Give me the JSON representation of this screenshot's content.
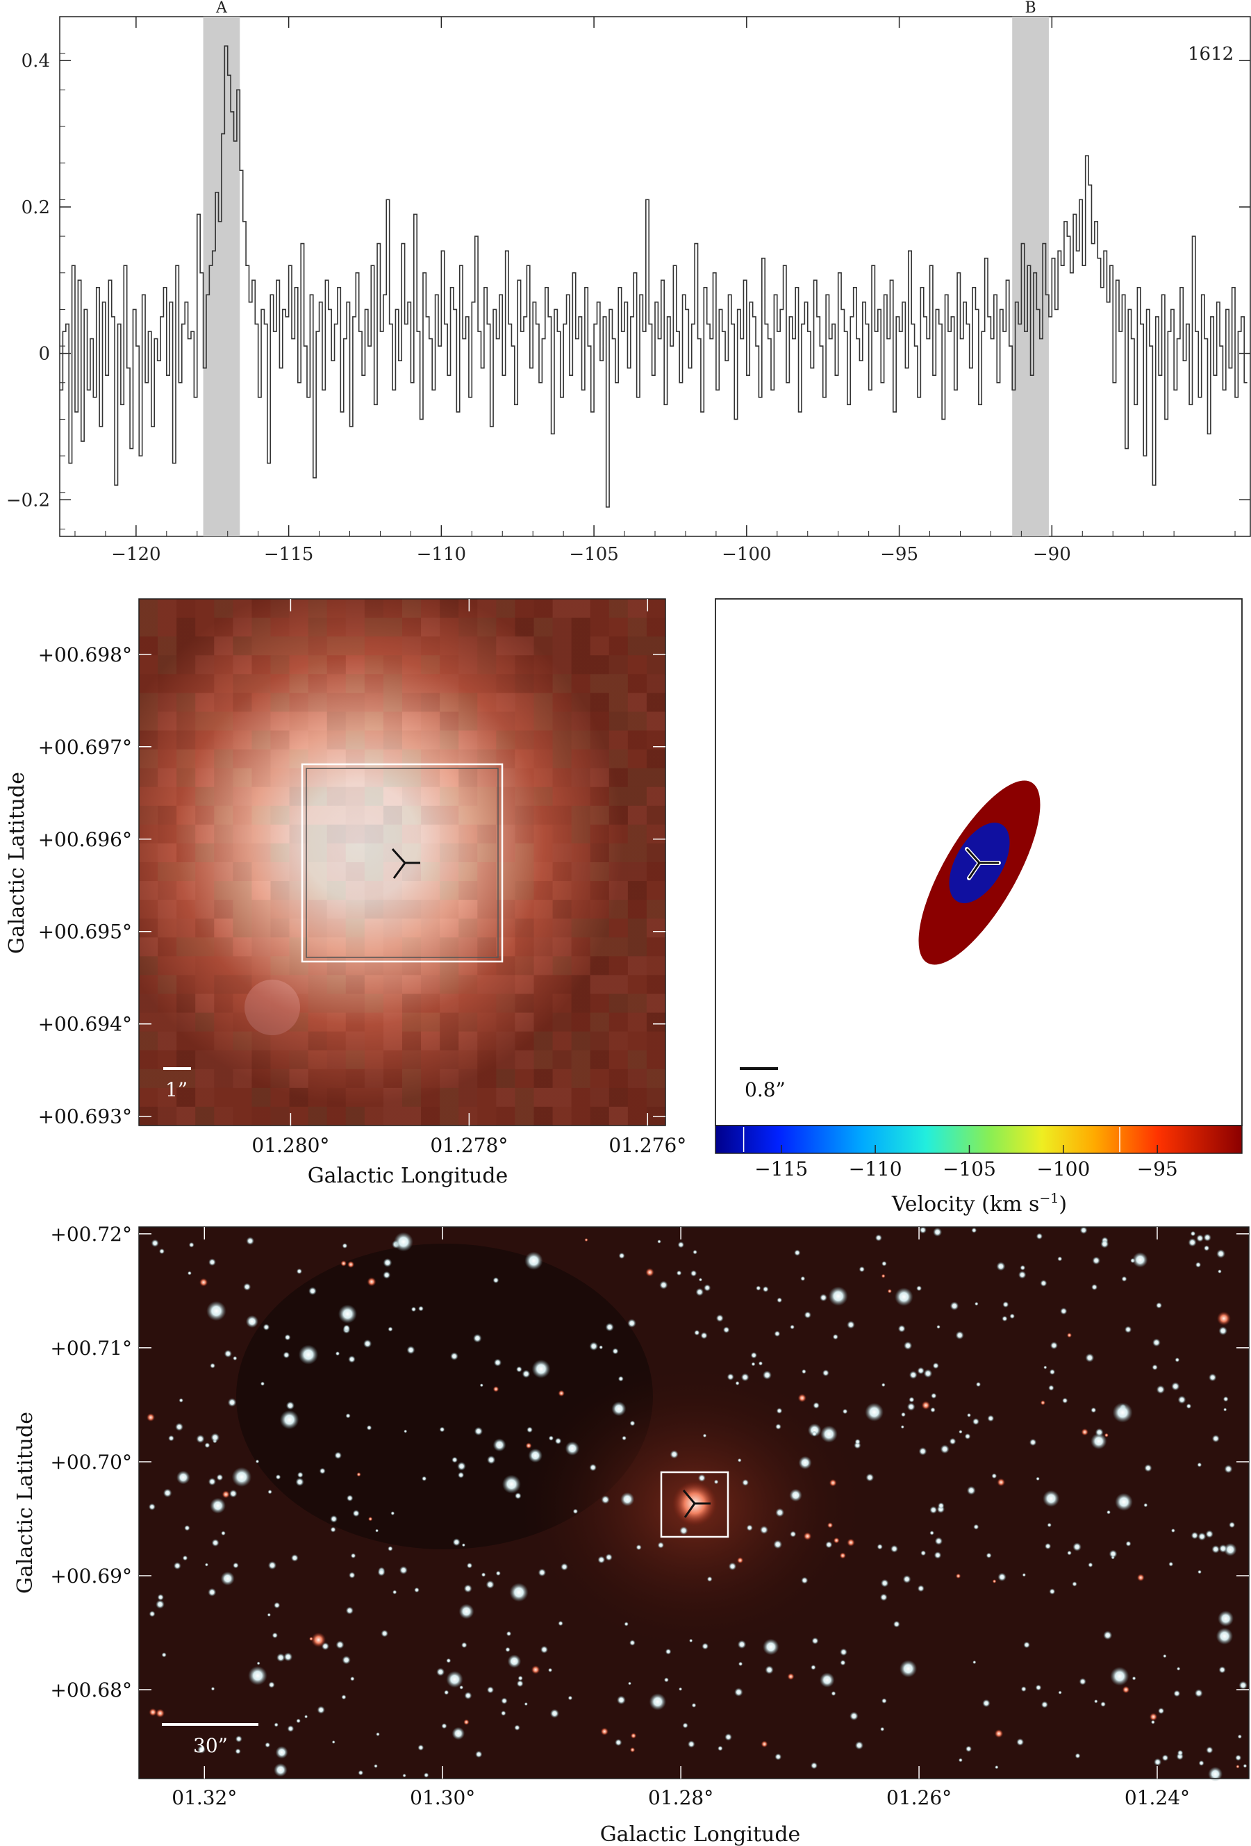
{
  "spectrum": {
    "line_label": "1612",
    "markers": [
      {
        "label": "A",
        "range": [
          -117.8,
          -116.6
        ]
      },
      {
        "label": "B",
        "range": [
          -91.3,
          -90.1
        ]
      }
    ],
    "marker_color": "#cccccc"
  },
  "zoom": {
    "xlabel": "Galactic Longitude",
    "ylabel": "Galactic Latitude",
    "scale_label": "1”",
    "xticks": [
      "01.280°",
      "01.278°",
      "01.276°"
    ],
    "yticks": [
      "+00.698°",
      "+00.697°",
      "+00.696°",
      "+00.695°",
      "+00.694°",
      "+00.693°"
    ]
  },
  "velocity_map": {
    "scale_label": "0.8”",
    "colorbar_label": "Velocity (km s",
    "colorbar_exp": "−1",
    "colorbar_ticks": [
      "−115",
      "−110",
      "−105",
      "−100",
      "−95"
    ],
    "outer_color": "#8b0000",
    "inner_color": "#1010a0"
  },
  "field": {
    "xlabel": "Galactic Longitude",
    "ylabel": "Galactic Latitude",
    "scale_label": "30”",
    "xticks": [
      "01.32°",
      "01.30°",
      "01.28°",
      "01.26°",
      "01.24°"
    ],
    "yticks": [
      "+00.72°",
      "+00.71°",
      "+00.70°",
      "+00.69°",
      "+00.68°"
    ]
  },
  "chart_data": [
    {
      "type": "line",
      "title": "",
      "xlabel": "",
      "ylabel": "",
      "xlim": [
        -122.5,
        -83.5
      ],
      "ylim": [
        -0.25,
        0.46
      ],
      "xticks": [
        -120,
        -115,
        -110,
        -105,
        -100,
        -95,
        -90
      ],
      "yticks": [
        -0.2,
        0,
        0.2,
        0.4
      ],
      "ytick_labels": [
        "−0.2",
        "0",
        "0.2",
        "0.4"
      ],
      "xtick_labels": [
        "−120",
        "−115",
        "−110",
        "−105",
        "−100",
        "−95",
        "−90"
      ],
      "grid": false,
      "series": [
        {
          "name": "",
          "x_start": -122.5,
          "x_step": 0.1,
          "values": [
            -0.05,
            0.03,
            0.04,
            -0.15,
            0.12,
            -0.08,
            0.1,
            -0.12,
            0.06,
            -0.05,
            0.02,
            -0.06,
            0.09,
            -0.1,
            0.07,
            -0.03,
            0.1,
            0.05,
            -0.18,
            0.04,
            -0.07,
            0.12,
            -0.02,
            -0.13,
            0.06,
            0.01,
            -0.14,
            0.08,
            -0.04,
            0.03,
            -0.1,
            0.02,
            -0.01,
            0.05,
            0.09,
            -0.03,
            0.07,
            -0.15,
            0.12,
            -0.04,
            0.04,
            0.07,
            0.02,
            0.03,
            -0.06,
            0.19,
            0.11,
            -0.02,
            0.08,
            0.12,
            0.14,
            0.22,
            0.18,
            0.3,
            0.42,
            0.38,
            0.33,
            0.29,
            0.36,
            0.25,
            0.18,
            0.12,
            0.07,
            0.1,
            0.04,
            -0.06,
            0.06,
            0.04,
            -0.15,
            0.08,
            0.03,
            0.1,
            -0.02,
            0.06,
            0.05,
            0.12,
            0.02,
            0.09,
            -0.04,
            0.15,
            0.01,
            -0.06,
            0.08,
            -0.17,
            0.03,
            0.07,
            -0.05,
            0.1,
            0.06,
            -0.01,
            0.04,
            0.09,
            -0.08,
            0.02,
            0.07,
            -0.1,
            0.05,
            0.11,
            0.03,
            -0.03,
            0.06,
            0.01,
            0.12,
            -0.07,
            0.15,
            0.03,
            0.08,
            0.21,
            0.04,
            -0.05,
            0.06,
            -0.01,
            0.15,
            0.04,
            0.07,
            -0.04,
            0.19,
            0.03,
            -0.09,
            0.11,
            0.05,
            0.02,
            -0.05,
            0.08,
            0.01,
            0.14,
            0.04,
            -0.03,
            0.09,
            0.06,
            -0.08,
            0.12,
            0.02,
            0.05,
            -0.06,
            0.07,
            0.16,
            0.03,
            -0.02,
            0.09,
            0.04,
            -0.1,
            0.06,
            0.02,
            0.08,
            -0.03,
            0.14,
            0.04,
            0.01,
            -0.07,
            0.1,
            0.03,
            0.05,
            0.12,
            -0.02,
            0.07,
            0.04,
            -0.04,
            0.02,
            0.09,
            0.05,
            -0.11,
            0.06,
            0.03,
            -0.06,
            0.04,
            0.08,
            -0.03,
            0.11,
            0.02,
            0.05,
            -0.05,
            0.09,
            0.01,
            -0.08,
            0.04,
            0.07,
            -0.01,
            0.05,
            -0.21,
            0.06,
            0.02,
            -0.04,
            0.09,
            0.03,
            0.07,
            -0.02,
            0.05,
            0.11,
            -0.06,
            0.08,
            0.03,
            0.21,
            0.04,
            -0.03,
            0.07,
            0.02,
            0.1,
            -0.07,
            0.05,
            0.01,
            0.12,
            0.03,
            -0.04,
            0.08,
            0.06,
            -0.02,
            0.04,
            0.15,
            0.02,
            -0.08,
            0.09,
            0.04,
            0.02,
            0.11,
            -0.05,
            0.06,
            0.03,
            -0.01,
            0.08,
            0.04,
            -0.09,
            0.06,
            0.02,
            0.1,
            -0.03,
            0.07,
            0.05,
            0.01,
            -0.06,
            0.13,
            0.04,
            0.02,
            -0.05,
            0.08,
            0.03,
            0.06,
            0.12,
            -0.04,
            0.05,
            0.02,
            0.09,
            -0.08,
            0.04,
            0.07,
            0.03,
            -0.02,
            0.1,
            0.05,
            0.01,
            -0.06,
            0.08,
            0.02,
            0.04,
            -0.03,
            0.11,
            0.06,
            0.03,
            -0.07,
            0.05,
            0.09,
            0.02,
            -0.01,
            0.07,
            0.04,
            -0.05,
            0.12,
            0.03,
            0.06,
            -0.04,
            0.08,
            0.02,
            0.1,
            -0.08,
            0.05,
            0.03,
            0.07,
            -0.02,
            0.14,
            0.04,
            0.01,
            -0.06,
            0.09,
            0.05,
            0.02,
            0.12,
            -0.03,
            0.06,
            0.04,
            -0.09,
            0.08,
            0.03,
            0.05,
            -0.05,
            0.11,
            0.02,
            0.07,
            0.04,
            -0.02,
            0.09,
            0.06,
            -0.07,
            0.03,
            0.13,
            0.05,
            0.02,
            0.08,
            -0.04,
            0.06,
            0.03,
            0.1,
            0.01,
            -0.05,
            0.07,
            0.04,
            0.15,
            0.03,
            0.12,
            -0.03,
            0.11,
            0.06,
            0.02,
            0.15,
            0.08,
            0.05,
            0.13,
            0.06,
            0.14,
            0.12,
            0.18,
            0.16,
            0.11,
            0.19,
            0.14,
            0.21,
            0.12,
            0.27,
            0.23,
            0.15,
            0.18,
            0.13,
            0.09,
            0.14,
            0.07,
            0.12,
            -0.04,
            0.1,
            0.03,
            0.08,
            -0.13,
            0.06,
            0.02,
            -0.07,
            0.09,
            0.04,
            -0.14,
            0.06,
            0.01,
            -0.18,
            0.05,
            -0.03,
            0.08,
            -0.09,
            0.03,
            0.06,
            -0.05,
            0.02,
            0.09,
            -0.01,
            0.04,
            -0.07,
            0.16,
            0.03,
            -0.06,
            0.08,
            0.02,
            -0.11,
            0.05,
            -0.03,
            0.07,
            0.01,
            -0.05,
            0.06,
            -0.02,
            0.09,
            -0.06,
            0.03,
            0.05,
            -0.04
          ]
        }
      ]
    }
  ]
}
